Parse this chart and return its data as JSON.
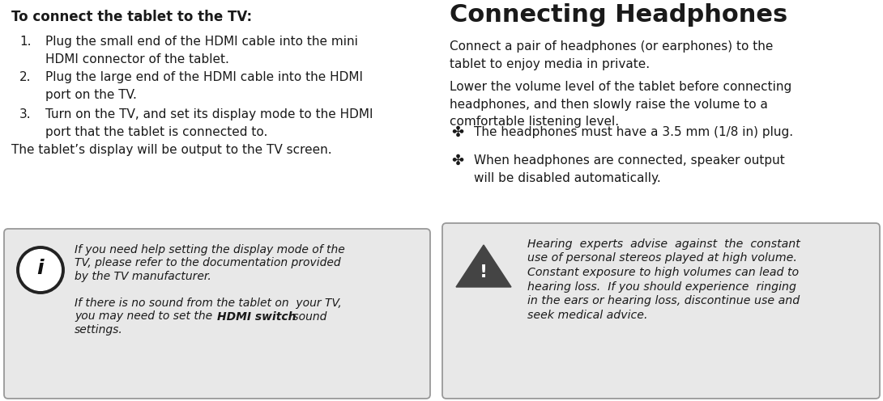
{
  "bg_color": "#ffffff",
  "text_color": "#1a1a1a",
  "left_col": {
    "heading": "To connect the tablet to the TV:",
    "steps": [
      {
        "num": "1.",
        "text": "Plug the small end of the HDMI cable into the mini\nHDMI connector of the tablet."
      },
      {
        "num": "2.",
        "text": "Plug the large end of the HDMI cable into the HDMI\nport on the TV."
      },
      {
        "num": "3.",
        "text": "Turn on the TV, and set its display mode to the HDMI\nport that the tablet is connected to."
      }
    ],
    "paragraph": "The tablet’s display will be output to the TV screen.",
    "info_box": {
      "info_lines": [
        "If you need help setting the display mode of the",
        "TV, please refer to the documentation provided",
        "by the TV manufacturer.",
        "",
        "If there is no sound from the tablet on  your TV,",
        "you may need to set the |HDMI switch| sound",
        "settings."
      ],
      "bold_word_start": "HDMI switch",
      "box_color": "#e8e8e8",
      "border_color": "#999999"
    }
  },
  "right_col": {
    "heading": "Connecting Headphones",
    "para1": "Connect a pair of headphones (or earphones) to the\ntablet to enjoy media in private.",
    "para2": "Lower the volume level of the tablet before connecting\nheadphones, and then slowly raise the volume to a\ncomfortable listening level.",
    "bullets": [
      "The headphones must have a 3.5 mm (1/8 in) plug.",
      "When headphones are connected, speaker output\nwill be disabled automatically."
    ],
    "warning_box": {
      "lines": [
        "Hearing  experts  advise  against  the  constant",
        "use of personal stereos played at high volume.",
        "Constant exposure to high volumes can lead to",
        "hearing loss.  If you should experience  ringing",
        "in the ears or hearing loss, discontinue use and",
        "seek medical advice."
      ],
      "box_color": "#e8e8e8",
      "border_color": "#999999"
    }
  }
}
